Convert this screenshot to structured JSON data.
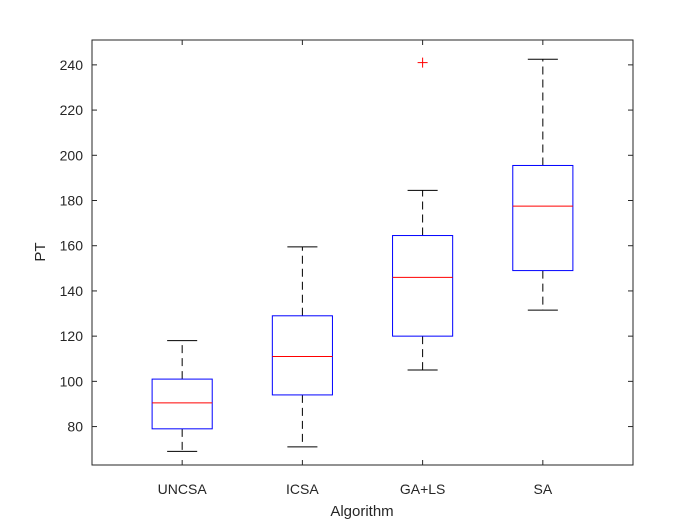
{
  "chart_data": {
    "type": "boxplot",
    "title": "",
    "xlabel": "Algorithm",
    "ylabel": "PT",
    "ylim": [
      63,
      251
    ],
    "yticks": [
      80,
      100,
      120,
      140,
      160,
      180,
      200,
      220,
      240
    ],
    "y_tick_labels": [
      "80",
      "100",
      "120",
      "140",
      "160",
      "180",
      "200",
      "220",
      "240"
    ],
    "grid": false,
    "legend": "none",
    "categories": [
      "UNCSA",
      "ICSA",
      "GA+LS",
      "SA"
    ],
    "boxes": [
      {
        "category": "UNCSA",
        "whisker_low": 69,
        "q1": 79,
        "median": 90.5,
        "q3": 101,
        "whisker_high": 118,
        "outliers": []
      },
      {
        "category": "ICSA",
        "whisker_low": 71,
        "q1": 94,
        "median": 111,
        "q3": 129,
        "whisker_high": 159.5,
        "outliers": []
      },
      {
        "category": "GA+LS",
        "whisker_low": 105,
        "q1": 120,
        "median": 146,
        "q3": 164.5,
        "whisker_high": 184.5,
        "outliers": [
          241
        ]
      },
      {
        "category": "SA",
        "whisker_low": 131.5,
        "q1": 149,
        "median": 177.5,
        "q3": 195.5,
        "whisker_high": 242.5,
        "outliers": []
      }
    ],
    "colors": {
      "box": "#0000ff",
      "median": "#ff0000",
      "whisker": "#000000",
      "outlier": "#ff0000",
      "axis": "#262626"
    }
  }
}
